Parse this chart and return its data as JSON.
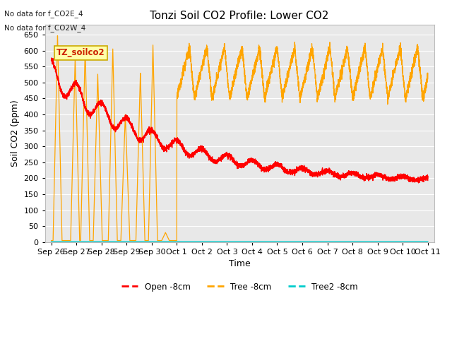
{
  "title": "Tonzi Soil CO2 Profile: Lower CO2",
  "ylabel": "Soil CO2 (ppm)",
  "xlabel": "Time",
  "ylim": [
    0,
    680
  ],
  "yticks": [
    0,
    50,
    100,
    150,
    200,
    250,
    300,
    350,
    400,
    450,
    500,
    550,
    600,
    650
  ],
  "x_tick_labels": [
    "Sep 26",
    "Sep 27",
    "Sep 28",
    "Sep 29",
    "Sep 30",
    "Oct 1",
    "Oct 2",
    "Oct 3",
    "Oct 4",
    "Oct 5",
    "Oct 6",
    "Oct 7",
    "Oct 8",
    "Oct 9",
    "Oct 10",
    "Oct 11"
  ],
  "x_tick_positions": [
    0,
    1,
    2,
    3,
    4,
    5,
    6,
    7,
    8,
    9,
    10,
    11,
    12,
    13,
    14,
    15
  ],
  "no_data_text": [
    "No data for f_CO2E_4",
    "No data for f_CO2W_4"
  ],
  "box_label": "TZ_soilco2",
  "legend_entries": [
    "Open -8cm",
    "Tree -8cm",
    "Tree2 -8cm"
  ],
  "legend_colors": [
    "#ff0000",
    "#ffa500",
    "#00cccc"
  ],
  "background_color": "#ffffff",
  "plot_bg_color": "#e8e8e8",
  "grid_color": "#ffffff",
  "title_fontsize": 11,
  "axis_label_fontsize": 9,
  "tick_fontsize": 8
}
